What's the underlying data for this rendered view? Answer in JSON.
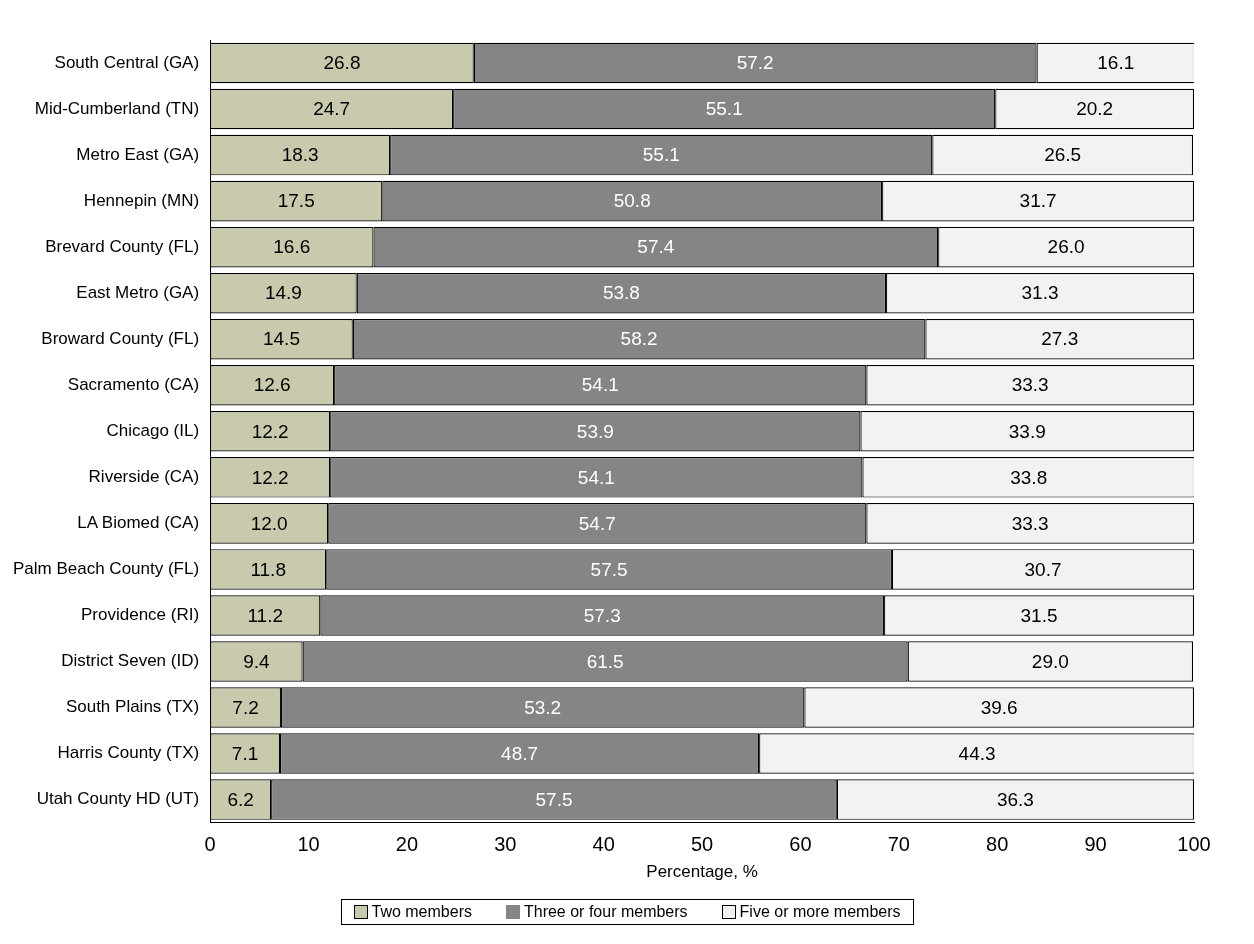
{
  "chart_data": {
    "type": "bar",
    "orientation": "horizontal",
    "stacked": true,
    "xlabel": "Percentage, %",
    "categories": [
      "South Central (GA)",
      "Mid-Cumberland (TN)",
      "Metro East (GA)",
      "Hennepin (MN)",
      "Brevard County (FL)",
      "East Metro (GA)",
      "Broward County (FL)",
      "Sacramento (CA)",
      "Chicago (IL)",
      "Riverside (CA)",
      "LA Biomed (CA)",
      "Palm Beach County (FL)",
      "Providence (RI)",
      "District Seven (ID)",
      "South Plains (TX)",
      "Harris County (TX)",
      "Utah County HD (UT)"
    ],
    "series": [
      {
        "name": "Two members",
        "color": "#c9c9ad",
        "values": [
          26.8,
          24.7,
          18.3,
          17.5,
          16.6,
          14.9,
          14.5,
          12.6,
          12.2,
          12.2,
          12.0,
          11.8,
          11.2,
          9.4,
          7.2,
          7.1,
          6.2
        ],
        "value_labels": [
          "26.8",
          "24.7",
          "18.3",
          "17.5",
          "16.6",
          "14.9",
          "14.5",
          "12.6",
          "12.2",
          "12.2",
          "12.0",
          "11.8",
          "11.2",
          "9.4",
          "7.2",
          "7.1",
          "6.2"
        ]
      },
      {
        "name": "Three or four members",
        "color": "#858585",
        "values": [
          57.2,
          55.1,
          55.1,
          50.8,
          57.4,
          53.8,
          58.2,
          54.1,
          53.9,
          54.1,
          54.7,
          57.5,
          57.3,
          61.5,
          53.2,
          48.7,
          57.5
        ],
        "value_labels": [
          "57.2",
          "55.1",
          "55.1",
          "50.8",
          "57.4",
          "53.8",
          "58.2",
          "54.1",
          "53.9",
          "54.1",
          "54.7",
          "57.5",
          "57.3",
          "61.5",
          "53.2",
          "48.7",
          "57.5"
        ]
      },
      {
        "name": "Five or more members",
        "color": "#f2f2f2",
        "values": [
          16.1,
          20.2,
          26.5,
          31.7,
          26.0,
          31.3,
          27.3,
          33.3,
          33.9,
          33.8,
          33.3,
          30.7,
          31.5,
          29.0,
          39.6,
          44.3,
          36.3
        ],
        "value_labels": [
          "16.1",
          "20.2",
          "26.5",
          "31.7",
          "26.0",
          "31.3",
          "27.3",
          "33.3",
          "33.9",
          "33.8",
          "33.3",
          "30.7",
          "31.5",
          "29.0",
          "39.6",
          "44.3",
          "36.3"
        ]
      }
    ],
    "xlim": [
      0,
      100
    ],
    "xticks": [
      0,
      10,
      20,
      30,
      40,
      50,
      60,
      70,
      80,
      90,
      100
    ],
    "legend": "bottom",
    "grid": false
  }
}
